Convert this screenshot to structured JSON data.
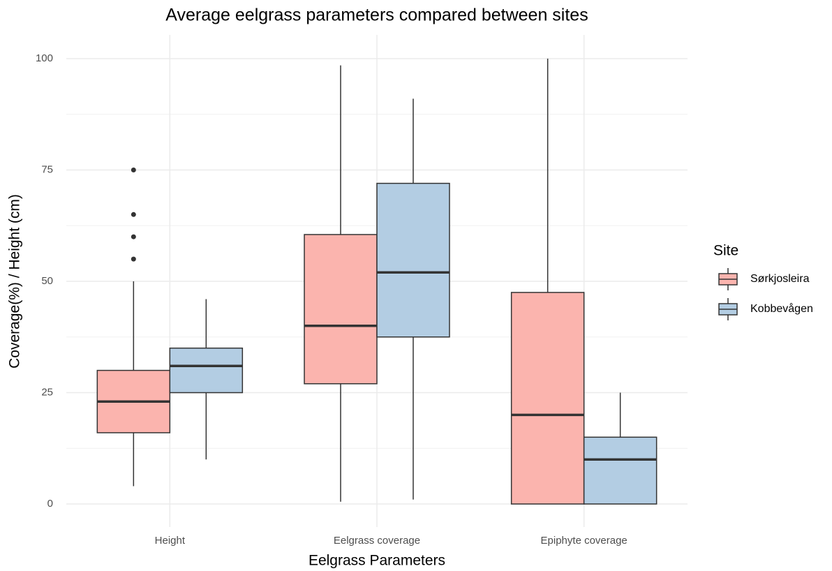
{
  "chart_data": {
    "type": "boxplot",
    "title": "Average eelgrass parameters compared between sites",
    "x_label": "Eelgrass Parameters",
    "y_label": "Coverage(%) / Height (cm)",
    "legend_title": "Site",
    "legend_position": "right",
    "grid": true,
    "categories": [
      "Height",
      "Eelgrass coverage",
      "Epiphyte coverage"
    ],
    "ylim": [
      0,
      100
    ],
    "yticks": [
      0,
      25,
      50,
      75,
      100
    ],
    "minor_yticks": [
      12.5,
      37.5,
      62.5,
      87.5
    ],
    "series": [
      {
        "name": "Sørkjosleira",
        "color": "#fbb4ae",
        "whisker_low": [
          4,
          0.5,
          0
        ],
        "q1": [
          16,
          27,
          0
        ],
        "median": [
          23,
          40,
          20
        ],
        "q3": [
          30,
          60.5,
          47.5
        ],
        "whisker_high": [
          50,
          98.5,
          100
        ],
        "outliers": [
          [
            55,
            60,
            65,
            75
          ],
          [],
          []
        ]
      },
      {
        "name": "Kobbevågen",
        "color": "#b3cde3",
        "whisker_low": [
          10,
          1,
          0
        ],
        "q1": [
          25,
          37.5,
          0
        ],
        "median": [
          31,
          52,
          10
        ],
        "q3": [
          35,
          72,
          15
        ],
        "whisker_high": [
          46,
          91,
          25
        ],
        "outliers": [
          [],
          [],
          []
        ]
      }
    ]
  }
}
